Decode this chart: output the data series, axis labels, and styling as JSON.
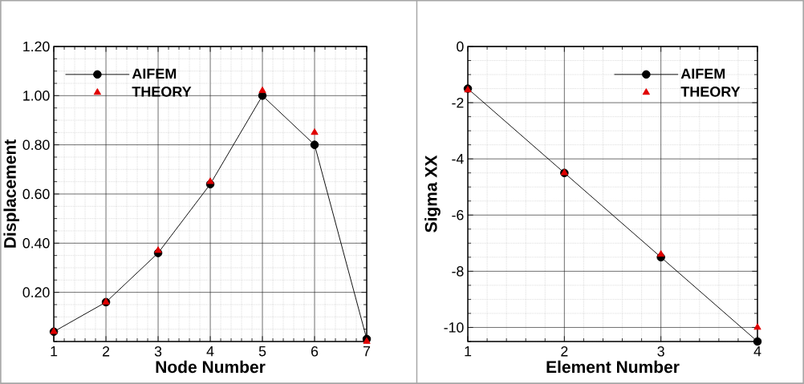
{
  "chart_data": [
    {
      "type": "line",
      "xlabel": "Node Number",
      "ylabel": "Displacement",
      "x": [
        1,
        2,
        3,
        4,
        5,
        6,
        7
      ],
      "xlim": [
        1,
        7
      ],
      "xticks": [
        1,
        2,
        3,
        4,
        5,
        6,
        7
      ],
      "ylim": [
        0,
        1.2
      ],
      "yticks": [
        {
          "value": 0.2,
          "label": "0.20"
        },
        {
          "value": 0.4,
          "label": "0.40"
        },
        {
          "value": 0.6,
          "label": "0.60"
        },
        {
          "value": 0.8,
          "label": "0.80"
        },
        {
          "value": 1.0,
          "label": "1.00"
        },
        {
          "value": 1.2,
          "label": "1.20"
        }
      ],
      "grid": true,
      "legend": "top left",
      "series": [
        {
          "name": "AIFEM",
          "color": "#000000",
          "marker": "circle",
          "values": [
            0.04,
            0.16,
            0.36,
            0.64,
            1.0,
            0.8,
            0.01
          ]
        },
        {
          "name": "THEORY",
          "type": "scatter",
          "color": "#e00000",
          "marker": "triangle",
          "values": [
            0.04,
            0.16,
            0.37,
            0.65,
            1.02,
            0.85,
            0.0
          ]
        }
      ]
    },
    {
      "type": "line",
      "xlabel": "Element Number",
      "ylabel": "Sigma XX",
      "x": [
        1,
        2,
        3,
        4
      ],
      "xlim": [
        1,
        4
      ],
      "xticks": [
        1,
        2,
        3,
        4
      ],
      "ylim": [
        -10.5,
        0
      ],
      "yticks": [
        -10,
        -8,
        -6,
        -4,
        -2,
        0
      ],
      "grid": true,
      "legend": "top right",
      "series": [
        {
          "name": "AIFEM",
          "color": "#000000",
          "marker": "circle",
          "values": [
            -1.5,
            -4.5,
            -7.5,
            -10.5
          ]
        },
        {
          "name": "THEORY",
          "type": "scatter",
          "color": "#e00000",
          "marker": "triangle",
          "values": [
            -1.55,
            -4.5,
            -7.4,
            -10.0
          ]
        }
      ]
    }
  ]
}
